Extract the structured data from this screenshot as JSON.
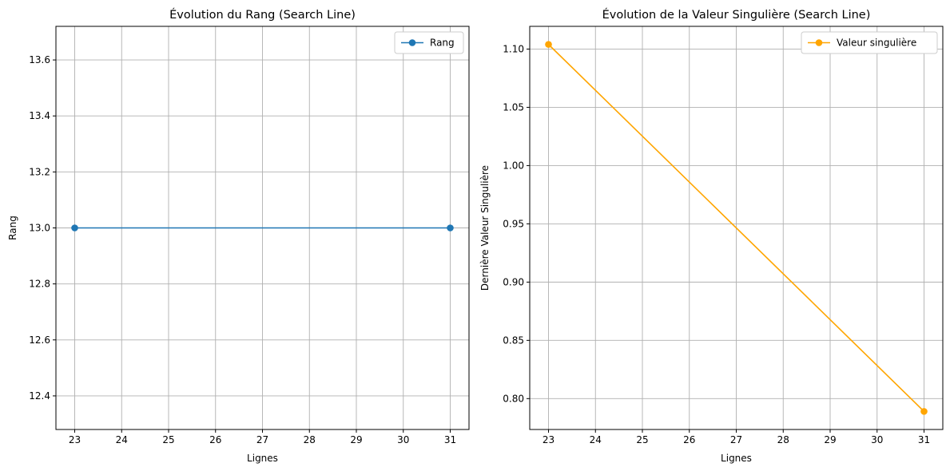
{
  "chart_data": [
    {
      "type": "line",
      "title": "Évolution du Rang (Search Line)",
      "xlabel": "Lignes",
      "ylabel": "Rang",
      "xlim": [
        22.6,
        31.4
      ],
      "ylim": [
        12.28,
        13.72
      ],
      "xticks": [
        23,
        24,
        25,
        26,
        27,
        28,
        29,
        30,
        31
      ],
      "yticks": [
        12.4,
        12.6,
        12.8,
        13.0,
        13.2,
        13.4,
        13.6
      ],
      "ytick_labels": [
        "12.4",
        "12.6",
        "12.8",
        "13.0",
        "13.2",
        "13.4",
        "13.6"
      ],
      "grid": true,
      "legend_position": "upper-right",
      "series": [
        {
          "name": "Rang",
          "color": "#1f77b4",
          "marker": "circle",
          "x": [
            23,
            31
          ],
          "y": [
            13.0,
            13.0
          ]
        }
      ]
    },
    {
      "type": "line",
      "title": "Évolution de la Valeur Singulière (Search Line)",
      "xlabel": "Lignes",
      "ylabel": "Dernière Valeur Singulière",
      "xlim": [
        22.6,
        31.4
      ],
      "ylim": [
        0.7735,
        1.1195
      ],
      "xticks": [
        23,
        24,
        25,
        26,
        27,
        28,
        29,
        30,
        31
      ],
      "yticks": [
        0.8,
        0.85,
        0.9,
        0.95,
        1.0,
        1.05,
        1.1
      ],
      "ytick_labels": [
        "0.80",
        "0.85",
        "0.90",
        "0.95",
        "1.00",
        "1.05",
        "1.10"
      ],
      "grid": true,
      "legend_position": "upper-right",
      "series": [
        {
          "name": "Valeur singulière",
          "color": "#ffa500",
          "marker": "circle",
          "x": [
            23,
            31
          ],
          "y": [
            1.104,
            0.789
          ]
        }
      ]
    }
  ]
}
